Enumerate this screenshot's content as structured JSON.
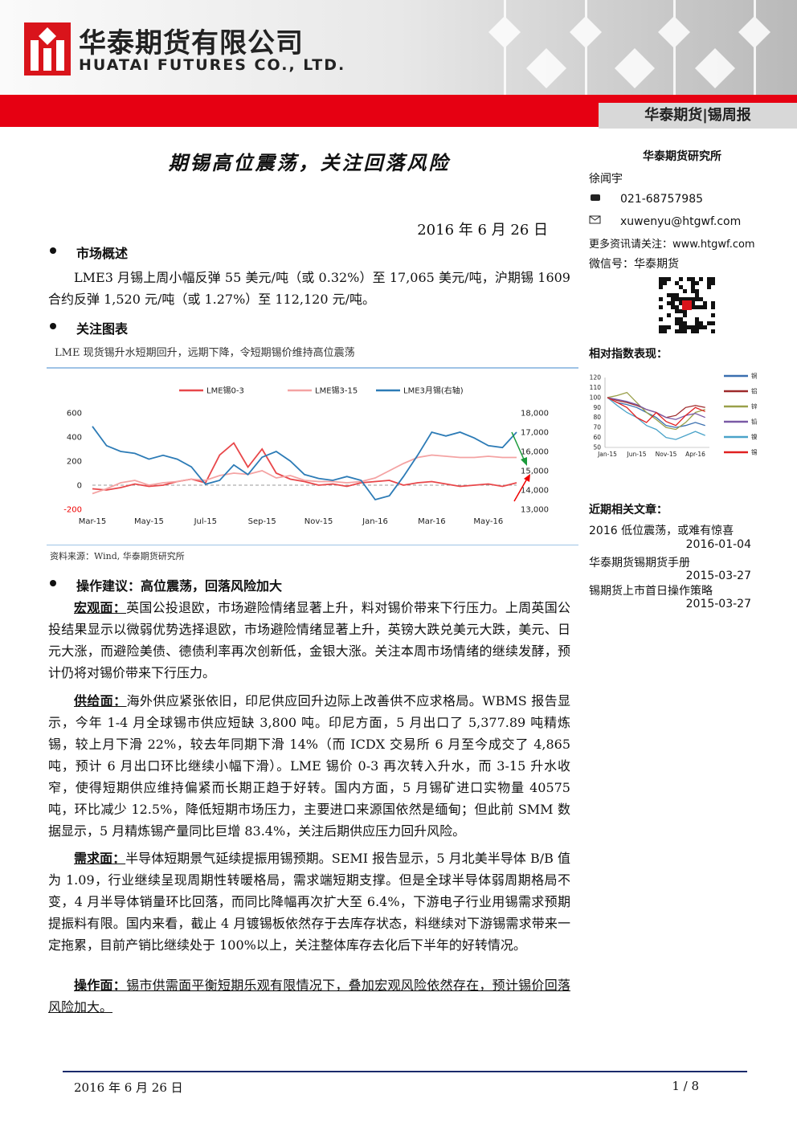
{
  "header": {
    "company_cn": "华泰期货有限公司",
    "company_en": "HUATAI FUTURES CO., LTD.",
    "tab": "华泰期货|锡周报"
  },
  "title": "期锡高位震荡，关注回落风险",
  "date": "2016 年 6 月 26 日",
  "sections": [
    {
      "heading": "市场概述",
      "text": "LME3 月锡上周小幅反弹 55 美元/吨（或 0.32%）至 17,065 美元/吨，沪期锡 1609 合约反弹 1,520 元/吨（或 1.27%）至 112,120 元/吨。"
    },
    {
      "heading": "关注图表",
      "caption": "LME 现货锡升水短期回升，远期下降，令短期锡价维持高位震荡",
      "source": "资料来源：Wind, 华泰期货研究所"
    },
    {
      "heading": "操作建议：高位震荡，回落风险加大",
      "paragraphs": [
        {
          "label": "宏观面：",
          "text": "英国公投退欧，市场避险情绪显著上升，料对锡价带来下行压力。上周英国公投结果显示以微弱优势选择退欧，市场避险情绪显著上升，英镑大跌兑美元大跌，美元、日元大涨，而避险美债、德债利率再次创新低，金银大涨。关注本周市场情绪的继续发酵，预计仍将对锡价带来下行压力。"
        },
        {
          "label": "供给面：",
          "text": "海外供应紧张依旧，印尼供应回升边际上改善供不应求格局。WBMS 报告显示，今年 1-4 月全球锡市供应短缺 3,800 吨。印尼方面，5 月出口了 5,377.89 吨精炼锡，较上月下滑 22%，较去年同期下滑 14%（而 ICDX 交易所 6 月至今成交了 4,865 吨，预计 6 月出口环比继续小幅下滑）。LME 锡价 0-3 再次转入升水，而 3-15 升水收窄，使得短期供应维持偏紧而长期正趋于好转。国内方面，5 月锡矿进口实物量 40575 吨，环比减少 12.5%，降低短期市场压力，主要进口来源国依然是缅甸；但此前 SMM 数据显示，5 月精炼锡产量同比巨增 83.4%，关注后期供应压力回升风险。"
        },
        {
          "label": "需求面：",
          "text": "半导体短期景气延续提振用锡预期。SEMI 报告显示，5 月北美半导体 B/B 值为 1.09，行业继续呈现周期性转暖格局，需求端短期支撑。但是全球半导体弱周期格局不变，4 月半导体销量环比回落，而同比降幅再次扩大至 6.4%，下游电子行业用锡需求预期提振料有限。国内来看，截止 4 月镀锡板依然存于去库存状态，料继续对下游锡需求带来一定拖累，目前产销比继续处于 100%以上，关注整体库存去化后下半年的好转情况。"
        },
        {
          "label": "操作面：",
          "text": "锡市供需面平衡短期乐观有限情况下，叠加宏观风险依然存在，预计锡价回落风险加大。"
        }
      ]
    }
  ],
  "sidebar": {
    "institute": "华泰期货研究所",
    "analyst": "徐闻宇",
    "phone": "021-68757985",
    "email": "xuwenyu@htgwf.com",
    "more": "更多资讯请关注：www.htgwf.com",
    "wechat": "微信号：华泰期货",
    "index_title": "相对指数表现：",
    "articles_title": "近期相关文章：",
    "articles": [
      {
        "title": "2016 低位震荡，或难有惊喜",
        "date": "2016-01-04"
      },
      {
        "title": "华泰期货锡期货手册",
        "date": "2015-03-27"
      },
      {
        "title": "锡期货上市首日操作策略",
        "date": "2015-03-27"
      }
    ]
  },
  "footer": {
    "date": "2016 年 6 月 26 日",
    "page": "1 / 8"
  },
  "chart_data": [
    {
      "type": "line",
      "categories": [
        "Mar-15",
        null,
        null,
        null,
        "May-15",
        null,
        null,
        null,
        "Jul-15",
        null,
        null,
        null,
        "Sep-15",
        null,
        null,
        null,
        "Nov-15",
        null,
        null,
        null,
        "Jan-16",
        null,
        null,
        null,
        "Mar-16",
        null,
        null,
        null,
        "May-16",
        null,
        null
      ],
      "ylim": [
        -200,
        600
      ],
      "yticks": [
        -200,
        0,
        200,
        400,
        600
      ],
      "y2lim": [
        13000,
        18000
      ],
      "y2ticks": [
        {
          "value": 13000,
          "label": "13,000"
        },
        {
          "value": 14000,
          "label": "14,000"
        },
        {
          "value": 15000,
          "label": "15,000"
        },
        {
          "value": 16000,
          "label": "16,000"
        },
        {
          "value": 17000,
          "label": "17,000"
        },
        {
          "value": 18000,
          "label": "18,000"
        }
      ],
      "series": [
        {
          "name": "LME锡0-3",
          "color": "#e8474a",
          "values": [
            -30,
            -40,
            -20,
            10,
            -10,
            0,
            30,
            50,
            20,
            250,
            350,
            150,
            300,
            100,
            50,
            30,
            0,
            10,
            -10,
            20,
            30,
            40,
            0,
            20,
            30,
            10,
            -10,
            0,
            10,
            -10,
            20
          ]
        },
        {
          "name": "LME锡3-15",
          "color": "#f4a3a3",
          "values": [
            -70,
            -30,
            20,
            40,
            0,
            20,
            30,
            50,
            40,
            80,
            100,
            90,
            120,
            60,
            80,
            40,
            30,
            30,
            20,
            30,
            60,
            120,
            180,
            230,
            250,
            240,
            230,
            230,
            240,
            230,
            230
          ]
        },
        {
          "name": "LME3月锡(右轴)",
          "color": "#2c7bb6",
          "axis": "y2",
          "values": [
            17300,
            16300,
            16000,
            15900,
            15600,
            15800,
            15600,
            15200,
            14300,
            14500,
            15300,
            14800,
            15700,
            16000,
            15500,
            14800,
            14600,
            14500,
            14700,
            14500,
            13500,
            13700,
            14700,
            15800,
            17000,
            16800,
            17000,
            16700,
            16300,
            16200,
            17000
          ]
        }
      ]
    },
    {
      "type": "line",
      "categories": [
        "Jan-15",
        null,
        null,
        "Jun-15",
        null,
        null,
        "Nov-15",
        null,
        null,
        "Apr-16",
        null
      ],
      "ylim": [
        50,
        120
      ],
      "yticks": [
        50,
        60,
        70,
        80,
        90,
        100,
        110,
        120
      ],
      "series": [
        {
          "name": "铜",
          "color": "#3a6fb0",
          "values": [
            100,
            95,
            93,
            90,
            85,
            80,
            72,
            70,
            72,
            75,
            72
          ]
        },
        {
          "name": "铝",
          "color": "#9e2a2b",
          "values": [
            100,
            97,
            95,
            92,
            88,
            85,
            80,
            82,
            90,
            92,
            90
          ]
        },
        {
          "name": "锌",
          "color": "#9aa04a",
          "values": [
            100,
            102,
            105,
            95,
            85,
            78,
            70,
            68,
            75,
            85,
            88
          ]
        },
        {
          "name": "铅",
          "color": "#7a5aa6",
          "values": [
            100,
            98,
            96,
            93,
            88,
            85,
            80,
            78,
            82,
            84,
            80
          ]
        },
        {
          "name": "镍",
          "color": "#4aa3c9",
          "values": [
            100,
            92,
            85,
            80,
            72,
            68,
            60,
            58,
            62,
            66,
            62
          ]
        },
        {
          "name": "锡",
          "color": "#e02020",
          "values": [
            100,
            95,
            90,
            80,
            75,
            85,
            76,
            72,
            82,
            90,
            86
          ]
        }
      ]
    }
  ]
}
